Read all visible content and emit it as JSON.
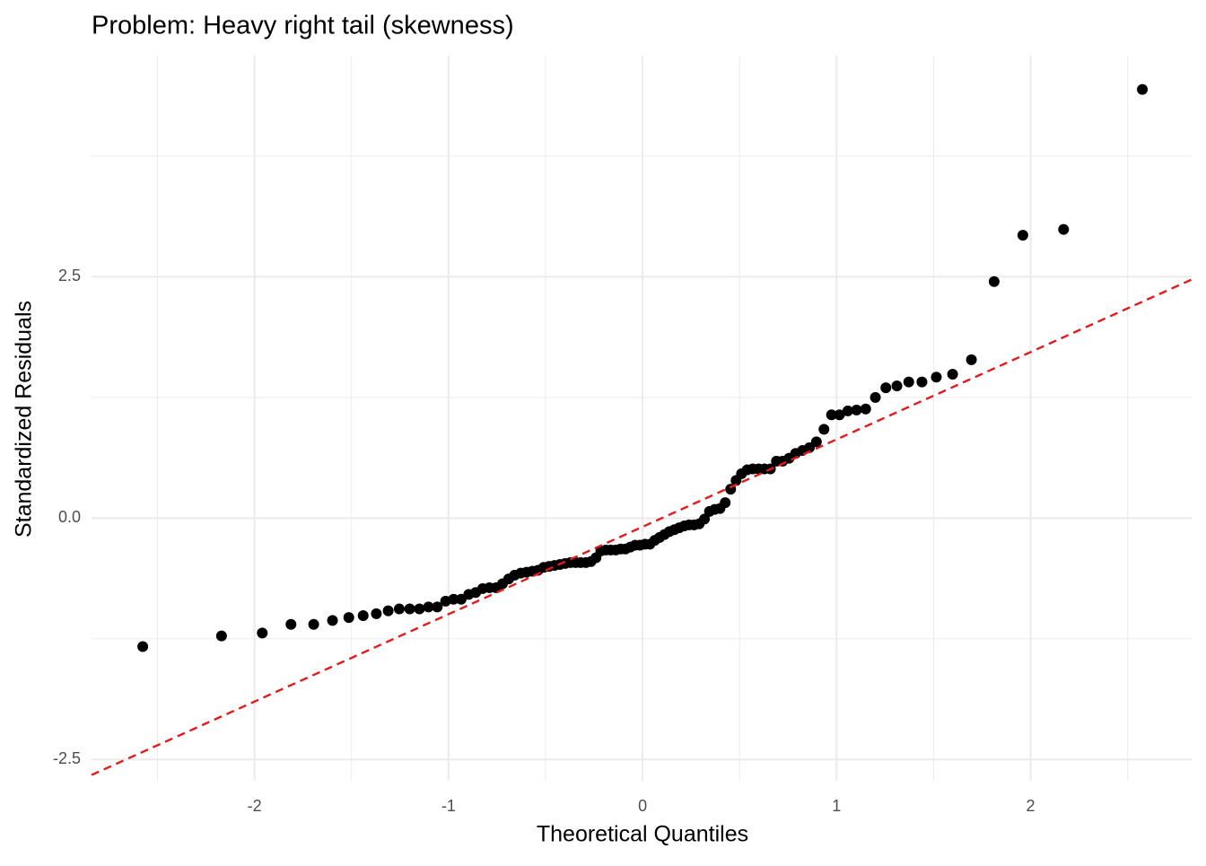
{
  "chart_data": {
    "type": "scatter",
    "title": "Problem: Heavy right tail (skewness)",
    "xlabel": "Theoretical Quantiles",
    "ylabel": "Standardized Residuals",
    "xlim": [
      -2.84,
      2.83
    ],
    "ylim": [
      -2.72,
      4.79
    ],
    "xticks": [
      -2,
      -1,
      0,
      1,
      2
    ],
    "yticks": [
      -2.5,
      {
        "value": 0,
        "label": "0.0"
      },
      2.5
    ],
    "x_minor_ticks": [
      -2.5,
      -1.5,
      -0.5,
      0.5,
      1.5,
      2.5
    ],
    "y_minor_ticks": [
      -1.25,
      1.25,
      3.75
    ],
    "grid": true,
    "color": "#000000",
    "reference_line": {
      "intercept": -0.09,
      "slope": 0.905,
      "color": "#e41a1c",
      "dashed": true
    },
    "x": [
      -2.576,
      -2.17,
      -1.96,
      -1.812,
      -1.695,
      -1.598,
      -1.514,
      -1.44,
      -1.372,
      -1.311,
      -1.254,
      -1.2,
      -1.15,
      -1.103,
      -1.058,
      -1.015,
      -0.974,
      -0.935,
      -0.896,
      -0.86,
      -0.824,
      -0.789,
      -0.755,
      -0.722,
      -0.69,
      -0.659,
      -0.628,
      -0.598,
      -0.568,
      -0.539,
      -0.51,
      -0.482,
      -0.454,
      -0.426,
      -0.399,
      -0.372,
      -0.345,
      -0.319,
      -0.292,
      -0.266,
      -0.24,
      -0.215,
      -0.189,
      -0.164,
      -0.138,
      -0.113,
      -0.088,
      -0.063,
      -0.038,
      -0.013,
      0.013,
      0.038,
      0.063,
      0.088,
      0.113,
      0.138,
      0.164,
      0.189,
      0.215,
      0.24,
      0.266,
      0.292,
      0.319,
      0.345,
      0.372,
      0.399,
      0.426,
      0.454,
      0.482,
      0.51,
      0.539,
      0.568,
      0.598,
      0.628,
      0.659,
      0.69,
      0.722,
      0.755,
      0.789,
      0.824,
      0.86,
      0.896,
      0.935,
      0.974,
      1.015,
      1.058,
      1.103,
      1.15,
      1.2,
      1.254,
      1.311,
      1.372,
      1.44,
      1.514,
      1.598,
      1.695,
      1.812,
      1.96,
      2.17,
      2.576
    ],
    "values": [
      -1.33,
      -1.22,
      -1.19,
      -1.1,
      -1.1,
      -1.06,
      -1.03,
      -1.01,
      -0.99,
      -0.96,
      -0.94,
      -0.94,
      -0.94,
      -0.92,
      -0.92,
      -0.86,
      -0.84,
      -0.84,
      -0.79,
      -0.77,
      -0.73,
      -0.72,
      -0.72,
      -0.68,
      -0.63,
      -0.59,
      -0.57,
      -0.56,
      -0.55,
      -0.54,
      -0.51,
      -0.5,
      -0.49,
      -0.48,
      -0.47,
      -0.46,
      -0.46,
      -0.46,
      -0.46,
      -0.45,
      -0.41,
      -0.34,
      -0.33,
      -0.33,
      -0.33,
      -0.32,
      -0.32,
      -0.3,
      -0.28,
      -0.28,
      -0.27,
      -0.27,
      -0.23,
      -0.2,
      -0.17,
      -0.14,
      -0.12,
      -0.1,
      -0.08,
      -0.07,
      -0.07,
      -0.06,
      -0.01,
      0.07,
      0.09,
      0.1,
      0.16,
      0.3,
      0.39,
      0.46,
      0.5,
      0.51,
      0.51,
      0.51,
      0.51,
      0.59,
      0.59,
      0.62,
      0.67,
      0.7,
      0.73,
      0.79,
      0.92,
      1.07,
      1.07,
      1.11,
      1.12,
      1.13,
      1.25,
      1.35,
      1.37,
      1.41,
      1.41,
      1.46,
      1.49,
      1.64,
      2.45,
      2.93,
      2.99,
      4.44
    ]
  }
}
